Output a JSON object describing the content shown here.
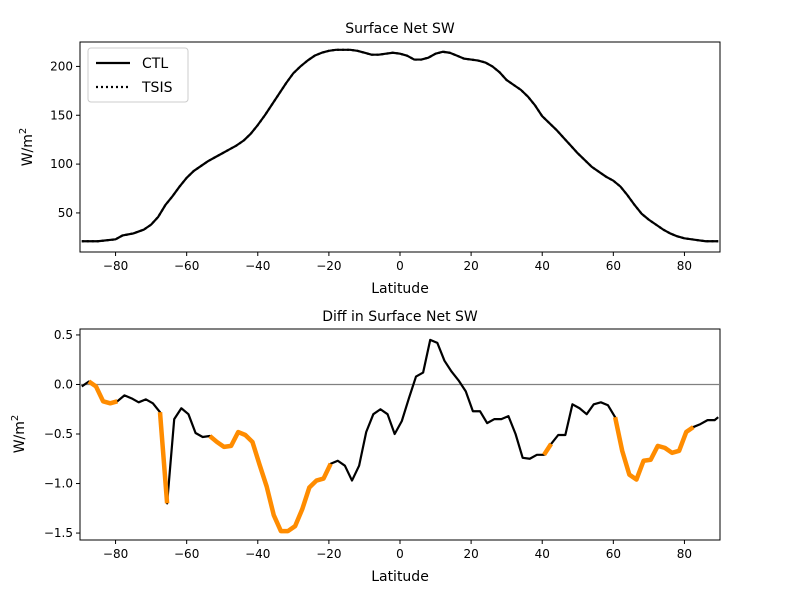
{
  "chart_data": [
    {
      "type": "line",
      "title": "Surface Net SW",
      "xlabel": "Latitude",
      "ylabel_base": "W/m",
      "ylabel_sup": "2",
      "xlim": [
        -90,
        90
      ],
      "ylim": [
        10,
        225
      ],
      "xticks": [
        -80,
        -60,
        -40,
        -20,
        0,
        20,
        40,
        60,
        80
      ],
      "xtick_labels": [
        "−80",
        "−60",
        "−40",
        "−20",
        "0",
        "20",
        "40",
        "60",
        "80"
      ],
      "yticks": [
        50,
        100,
        150,
        200
      ],
      "ytick_labels": [
        "50",
        "100",
        "150",
        "200"
      ],
      "legend": [
        "CTL",
        "TSIS"
      ],
      "legend_position": "top-left",
      "series": [
        {
          "name": "CTL",
          "style": "solid",
          "color": "#000000",
          "x": [
            -89.5,
            -85,
            -80,
            -78,
            -75,
            -72,
            -70,
            -68,
            -66,
            -64,
            -62,
            -60,
            -58,
            -56,
            -54,
            -52,
            -50,
            -48,
            -46,
            -44,
            -42,
            -40,
            -38,
            -36,
            -34,
            -32,
            -30,
            -28,
            -26,
            -24,
            -22,
            -20,
            -18,
            -16,
            -14,
            -12,
            -10,
            -8,
            -6,
            -4,
            -2,
            0,
            2,
            4,
            6,
            8,
            10,
            12,
            14,
            16,
            18,
            20,
            22,
            24,
            26,
            28,
            30,
            32,
            34,
            36,
            38,
            40,
            42,
            44,
            46,
            48,
            50,
            52,
            54,
            56,
            58,
            60,
            62,
            64,
            66,
            68,
            70,
            72,
            74,
            76,
            78,
            80,
            82,
            84,
            86,
            88,
            89.5
          ],
          "y": [
            21,
            21,
            23,
            27,
            29,
            33,
            38,
            46,
            58,
            67,
            77,
            86,
            93,
            98,
            103,
            107,
            111,
            115,
            119,
            124,
            131,
            140,
            150,
            161,
            172,
            183,
            193,
            200,
            206,
            211,
            214,
            216,
            217,
            217,
            217,
            216,
            214,
            212,
            212,
            213,
            214,
            213,
            211,
            207,
            207,
            209,
            213,
            215,
            214,
            211,
            208,
            207,
            206,
            204,
            200,
            194,
            186,
            181,
            176,
            169,
            160,
            149,
            142,
            135,
            127,
            119,
            111,
            104,
            97,
            92,
            87,
            83,
            77,
            68,
            58,
            49,
            43,
            38,
            33,
            29,
            26,
            24,
            23,
            22,
            21,
            21,
            21
          ]
        },
        {
          "name": "TSIS",
          "style": "dotted",
          "color": "#000000",
          "x": [
            -89.5,
            -85,
            -80,
            -78,
            -75,
            -72,
            -70,
            -68,
            -66,
            -64,
            -62,
            -60,
            -58,
            -56,
            -54,
            -52,
            -50,
            -48,
            -46,
            -44,
            -42,
            -40,
            -38,
            -36,
            -34,
            -32,
            -30,
            -28,
            -26,
            -24,
            -22,
            -20,
            -18,
            -16,
            -14,
            -12,
            -10,
            -8,
            -6,
            -4,
            -2,
            0,
            2,
            4,
            6,
            8,
            10,
            12,
            14,
            16,
            18,
            20,
            22,
            24,
            26,
            28,
            30,
            32,
            34,
            36,
            38,
            40,
            42,
            44,
            46,
            48,
            50,
            52,
            54,
            56,
            58,
            60,
            62,
            64,
            66,
            68,
            70,
            72,
            74,
            76,
            78,
            80,
            82,
            84,
            86,
            88,
            89.5
          ],
          "y": [
            21,
            21,
            23,
            27,
            29,
            33,
            38,
            46,
            58,
            67,
            77,
            86,
            93,
            98,
            103,
            107,
            111,
            115,
            119,
            124,
            131,
            140,
            150,
            161,
            172,
            183,
            193,
            200,
            206,
            211,
            214,
            216,
            217,
            217,
            217,
            216,
            214,
            212,
            212,
            213,
            214,
            213,
            211,
            207,
            207,
            209,
            213,
            215,
            214,
            211,
            208,
            207,
            206,
            204,
            200,
            194,
            186,
            181,
            176,
            169,
            160,
            149,
            142,
            135,
            127,
            119,
            111,
            104,
            97,
            92,
            87,
            83,
            77,
            68,
            58,
            49,
            43,
            38,
            33,
            29,
            26,
            24,
            23,
            22,
            21,
            21,
            21
          ]
        }
      ]
    },
    {
      "type": "line",
      "title": "Diff in Surface Net SW",
      "xlabel": "Latitude",
      "ylabel_base": "W/m",
      "ylabel_sup": "2",
      "xlim": [
        -90,
        90
      ],
      "ylim": [
        -1.57,
        0.56
      ],
      "xticks": [
        -80,
        -60,
        -40,
        -20,
        0,
        20,
        40,
        60,
        80
      ],
      "xtick_labels": [
        "−80",
        "−60",
        "−40",
        "−20",
        "0",
        "20",
        "40",
        "60",
        "80"
      ],
      "yticks": [
        -1.5,
        -1.0,
        -0.5,
        0.0,
        0.5
      ],
      "ytick_labels": [
        "−1.5",
        "−1.0",
        "−0.5",
        "0.0",
        "0.5"
      ],
      "zero_line": 0,
      "zero_line_color": "#808080",
      "line_color": "#000000",
      "highlight_color": "#ff8c00",
      "series": [
        {
          "name": "Diff",
          "x": [
            -89.5,
            -87.5,
            -85.5,
            -83.5,
            -81.5,
            -79.5,
            -77.5,
            -75.5,
            -73.5,
            -71.5,
            -69.5,
            -67.5,
            -65.5,
            -63.5,
            -61.5,
            -59.5,
            -57.5,
            -55.5,
            -53.5,
            -51.5,
            -49.5,
            -47.5,
            -45.5,
            -43.5,
            -41.5,
            -39.5,
            -37.5,
            -35.5,
            -33.5,
            -31.5,
            -29.5,
            -27.5,
            -25.5,
            -23.5,
            -21.5,
            -19.5,
            -17.5,
            -15.5,
            -13.5,
            -11.5,
            -9.5,
            -7.5,
            -5.5,
            -3.5,
            -1.5,
            0.5,
            2.5,
            4.5,
            6.5,
            8.5,
            10.5,
            12.5,
            14.5,
            16.5,
            18.5,
            20.5,
            22.5,
            24.5,
            26.5,
            28.5,
            30.5,
            32.5,
            34.5,
            36.5,
            38.5,
            40.5,
            42.5,
            44.5,
            46.5,
            48.5,
            50.5,
            52.5,
            54.5,
            56.5,
            58.5,
            60.5,
            62.5,
            64.5,
            66.5,
            68.5,
            70.5,
            72.5,
            74.5,
            76.5,
            78.5,
            80.5,
            82.5,
            84.5,
            86.5,
            88.5,
            89.5
          ],
          "y": [
            -0.02,
            0.03,
            -0.02,
            -0.17,
            -0.19,
            -0.17,
            -0.11,
            -0.14,
            -0.18,
            -0.15,
            -0.19,
            -0.28,
            -1.2,
            -0.35,
            -0.24,
            -0.3,
            -0.49,
            -0.53,
            -0.52,
            -0.58,
            -0.63,
            -0.62,
            -0.48,
            -0.51,
            -0.58,
            -0.81,
            -1.03,
            -1.32,
            -1.48,
            -1.48,
            -1.43,
            -1.26,
            -1.04,
            -0.97,
            -0.95,
            -0.8,
            -0.77,
            -0.82,
            -0.97,
            -0.82,
            -0.48,
            -0.3,
            -0.25,
            -0.3,
            -0.5,
            -0.37,
            -0.14,
            0.08,
            0.12,
            0.45,
            0.42,
            0.24,
            0.13,
            0.04,
            -0.07,
            -0.27,
            -0.27,
            -0.39,
            -0.35,
            -0.35,
            -0.32,
            -0.5,
            -0.74,
            -0.75,
            -0.71,
            -0.71,
            -0.6,
            -0.51,
            -0.51,
            -0.2,
            -0.24,
            -0.3,
            -0.2,
            -0.18,
            -0.21,
            -0.33,
            -0.67,
            -0.91,
            -0.96,
            -0.77,
            -0.76,
            -0.62,
            -0.64,
            -0.69,
            -0.67,
            -0.48,
            -0.43,
            -0.4,
            -0.36,
            -0.36,
            -0.33
          ]
        }
      ],
      "highlight_ranges": [
        [
          -87.5,
          -79.5
        ],
        [
          -67.5,
          -65.5
        ],
        [
          -53.5,
          -19.5
        ],
        [
          40.5,
          43.5
        ],
        [
          59.5,
          82.5
        ]
      ]
    }
  ]
}
